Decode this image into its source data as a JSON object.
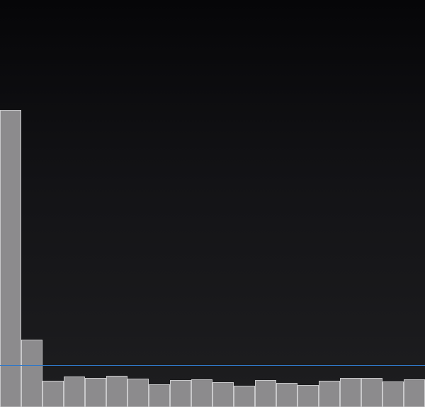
{
  "chart_data": {
    "type": "bar",
    "title": "",
    "xlabel": "",
    "ylabel": "",
    "grid": false,
    "legend": "none",
    "ylim": [
      0,
      574
    ],
    "values": [
      419,
      95,
      37,
      43,
      41,
      44,
      40,
      32,
      38,
      39,
      35,
      30,
      38,
      34,
      31,
      37,
      41,
      41,
      36,
      39
    ],
    "threshold": 59,
    "colors": {
      "bar_fill": "#8c8b8d",
      "bar_edge": "#c9c9cb",
      "threshold_line": "#2f78c8",
      "background_top": "#060608",
      "background_bottom": "#1e1e20"
    }
  }
}
